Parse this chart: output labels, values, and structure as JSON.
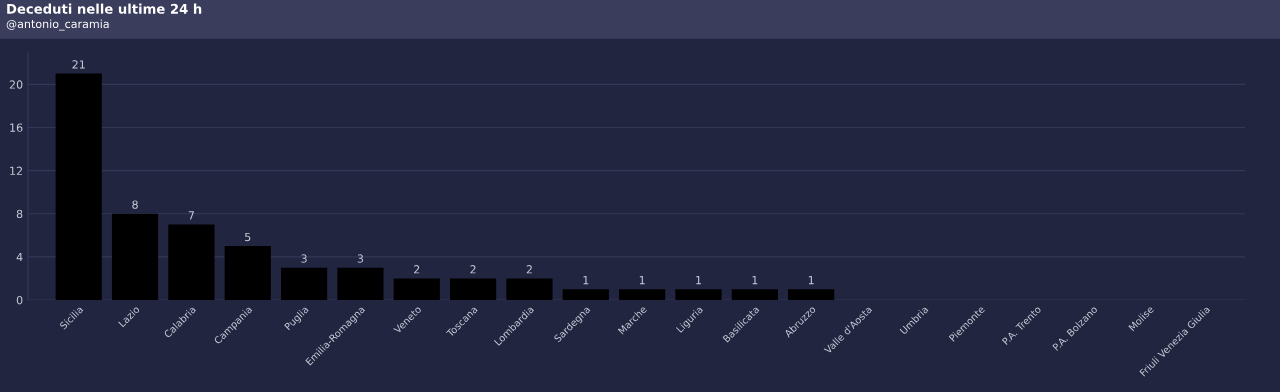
{
  "chart_data": {
    "type": "bar",
    "title": "Deceduti nelle ultime 24 h",
    "subtitle": "@antonio_caramia",
    "categories": [
      "Sicilia",
      "Lazio",
      "Calabria",
      "Campania",
      "Puglia",
      "Emilia-Romagna",
      "Veneto",
      "Toscana",
      "Lombardia",
      "Sardegna",
      "Marche",
      "Liguria",
      "Basilicata",
      "Abruzzo",
      "Valle d'Aosta",
      "Umbria",
      "Piemonte",
      "P.A. Trento",
      "P.A. Bolzano",
      "Molise",
      "Friuli Venezia Giulia"
    ],
    "values": [
      21,
      8,
      7,
      5,
      3,
      3,
      2,
      2,
      2,
      1,
      1,
      1,
      1,
      1,
      0,
      0,
      0,
      0,
      0,
      0,
      0
    ],
    "value_labels": [
      "21",
      "8",
      "7",
      "5",
      "3",
      "3",
      "2",
      "2",
      "2",
      "1",
      "1",
      "1",
      "1",
      "1",
      null,
      null,
      null,
      null,
      null,
      null,
      null
    ],
    "color": "#000000",
    "ylim": [
      0,
      23
    ],
    "yticks": [
      0,
      4,
      8,
      12,
      16,
      20
    ],
    "grid": "y"
  }
}
